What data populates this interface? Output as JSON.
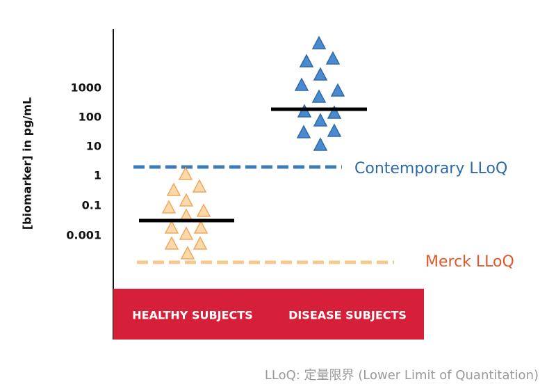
{
  "axis": {
    "label": "[biomarker] in pg/mL",
    "ticks": [
      "1000",
      "100",
      "10",
      "1",
      "0.1",
      "0.001"
    ]
  },
  "groups": [
    {
      "label": "HEALTHY SUBJECTS"
    },
    {
      "label": "DISEASE SUBJECTS"
    }
  ],
  "thresholds": [
    {
      "label": "Contemporary LLoQ"
    },
    {
      "label": "Merck LLoQ"
    }
  ],
  "footnote": "LLoQ: 定量限界 (Lower Limit of Quantitation)"
}
